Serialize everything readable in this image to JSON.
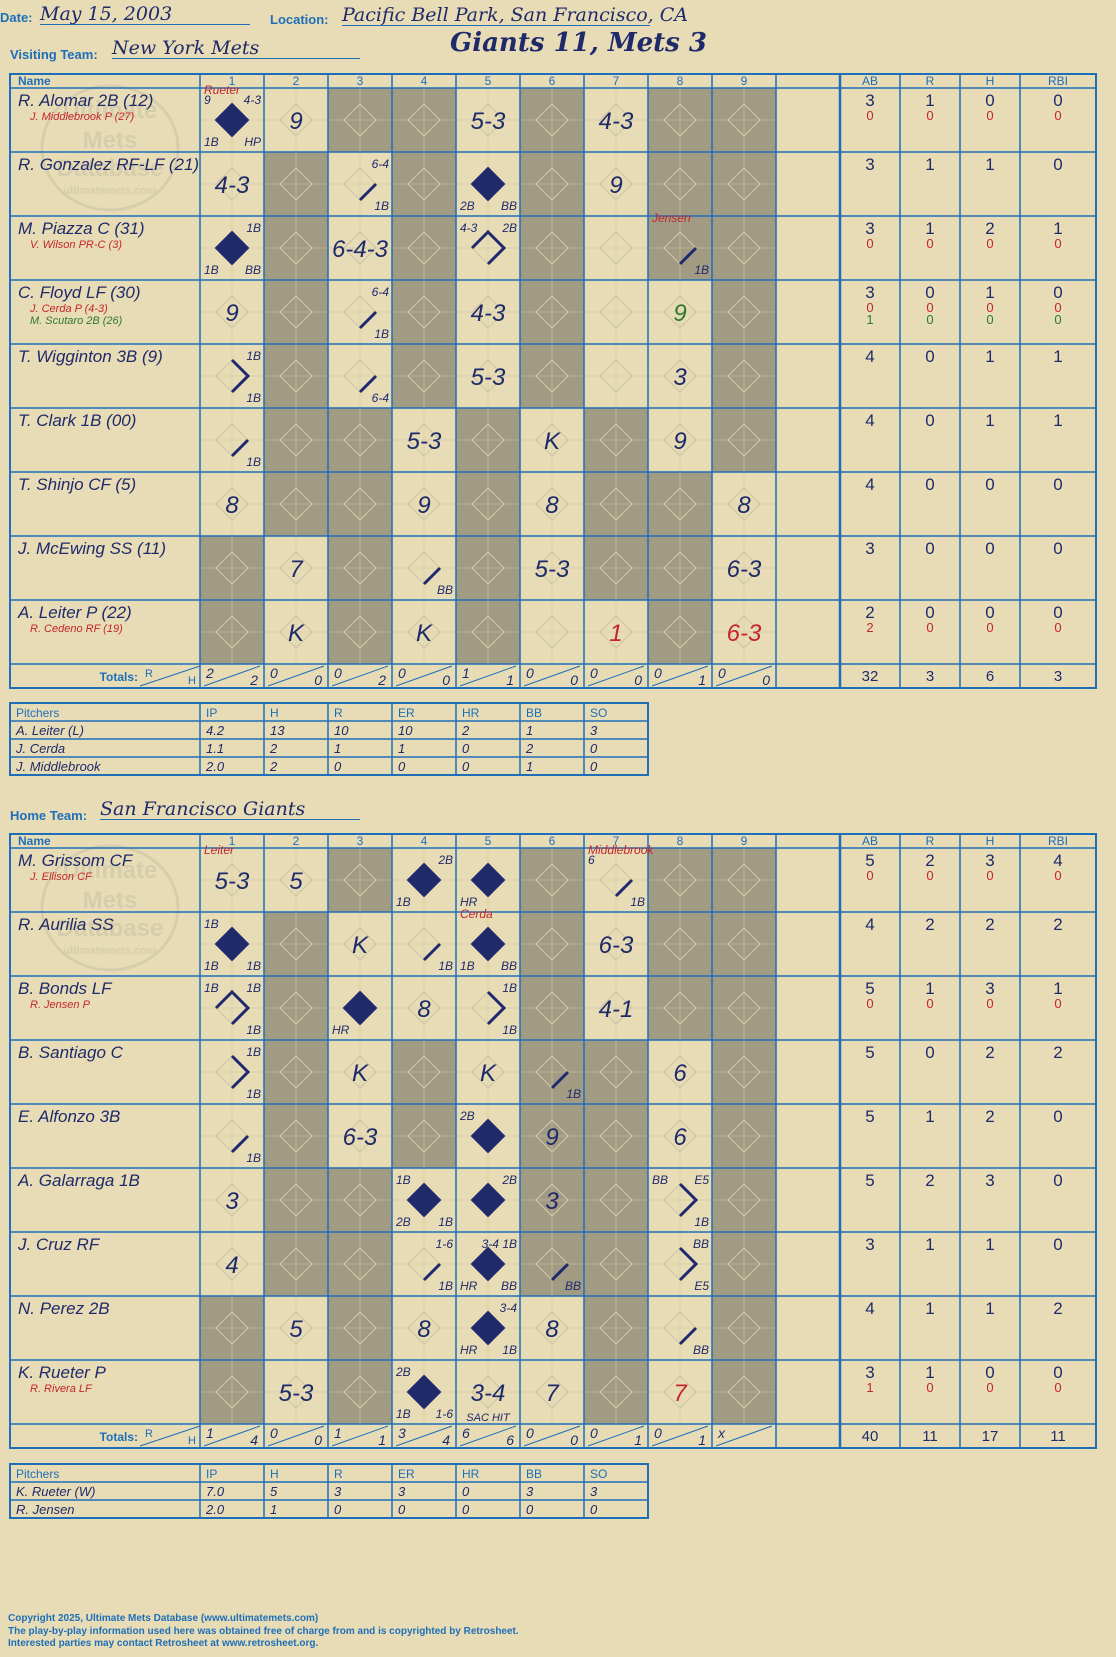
{
  "game": {
    "date_label": "Date:",
    "date": "May 15, 2003",
    "location_label": "Location:",
    "location": "Pacific Bell Park, San Francisco, CA",
    "visiting_label": "Visiting Team:",
    "visiting_team": "New York Mets",
    "home_label": "Home Team:",
    "home_team": "San Francisco Giants",
    "result": "Giants 11, Mets 3"
  },
  "headers": {
    "name": "Name",
    "innings": [
      "1",
      "2",
      "3",
      "4",
      "5",
      "6",
      "7",
      "8",
      "9"
    ],
    "stats": [
      "AB",
      "R",
      "H",
      "RBI"
    ],
    "totals": "Totals:",
    "r": "R",
    "h": "H"
  },
  "watermark": {
    "line1": "Ultimate",
    "line2": "Mets",
    "line3": "Database",
    "line4": "ultimatemets.com"
  },
  "colors": {
    "blue": "#1e6fb8",
    "ink": "#1f2a6b",
    "red": "#c4262b",
    "green": "#2f7a2b",
    "paper": "#e7dcb6",
    "shade": "#a29b83"
  },
  "visitors": {
    "shade_by_inning": [
      [
        0,
        0,
        1,
        1,
        0,
        1,
        0,
        1,
        1
      ],
      [
        0,
        1,
        0,
        1,
        0,
        1,
        0,
        1,
        1
      ],
      [
        0,
        1,
        0,
        1,
        0,
        1,
        0,
        1,
        1
      ],
      [
        0,
        1,
        0,
        1,
        0,
        1,
        0,
        0,
        1
      ],
      [
        0,
        1,
        0,
        1,
        0,
        1,
        0,
        0,
        1
      ],
      [
        0,
        1,
        1,
        0,
        1,
        0,
        1,
        0,
        1
      ],
      [
        0,
        1,
        1,
        0,
        1,
        0,
        1,
        1,
        0
      ],
      [
        1,
        0,
        1,
        0,
        1,
        0,
        1,
        1,
        0
      ],
      [
        1,
        0,
        1,
        0,
        1,
        0,
        0,
        1,
        0
      ]
    ],
    "batters": [
      {
        "name": "R. Alomar 2B (12)",
        "sub": "J. Middlebrook P (27)",
        "sub_color": "red",
        "sub2": "",
        "ab": "3",
        "r": "1",
        "h": "0",
        "rbi": "0",
        "ab2": "0",
        "r2": "0",
        "h2": "0",
        "rbi2": "0",
        "plays": [
          {
            "i": 1,
            "scored": true,
            "l": "",
            "tl": "9",
            "tr": "4-3",
            "bl": "1B",
            "br": "HP",
            "note": "Rueter"
          },
          {
            "i": 2,
            "l": "9"
          },
          {
            "i": 5,
            "l": "5-3"
          },
          {
            "i": 7,
            "l": "4-3"
          }
        ]
      },
      {
        "name": "R. Gonzalez RF-LF (21)",
        "sub": "",
        "sub2": "",
        "ab": "3",
        "r": "1",
        "h": "1",
        "rbi": "0",
        "plays": [
          {
            "i": 1,
            "l": "4-3"
          },
          {
            "i": 3,
            "tr": "6-4",
            "br": "1B",
            "path": 1
          },
          {
            "i": 5,
            "scored": true,
            "bl": "2B",
            "br": "BB"
          },
          {
            "i": 7,
            "l": "9"
          }
        ]
      },
      {
        "name": "M. Piazza C (31)",
        "sub": "V. Wilson PR-C (3)",
        "sub_color": "red",
        "sub2": "",
        "ab": "3",
        "r": "1",
        "h": "2",
        "rbi": "1",
        "ab2": "0",
        "r2": "0",
        "h2": "0",
        "rbi2": "0",
        "plays": [
          {
            "i": 1,
            "scored": true,
            "tr": "1B",
            "bl": "1B",
            "br": "BB"
          },
          {
            "i": 3,
            "l": "6-4-3"
          },
          {
            "i": 5,
            "tl": "4-3",
            "tr": "2B",
            "path": 3
          },
          {
            "i": 8,
            "br": "1B",
            "path": 1,
            "note": "Jensen"
          }
        ]
      },
      {
        "name": "C. Floyd LF (30)",
        "sub": "J. Cerda P (4-3)",
        "sub_color": "red",
        "sub2": "M. Scutaro 2B (26)",
        "ab": "3",
        "r": "0",
        "h": "1",
        "rbi": "0",
        "ab2": "0",
        "r2": "0",
        "h2": "0",
        "rbi2": "0",
        "ab3": "1",
        "r3": "0",
        "h3": "0",
        "rbi3": "0",
        "plays": [
          {
            "i": 1,
            "l": "9"
          },
          {
            "i": 3,
            "tr": "6-4",
            "br": "1B",
            "path": 1
          },
          {
            "i": 5,
            "l": "4-3"
          },
          {
            "i": 8,
            "l": "9",
            "green": true
          }
        ]
      },
      {
        "name": "T. Wigginton 3B (9)",
        "sub": "",
        "sub2": "",
        "ab": "4",
        "r": "0",
        "h": "1",
        "rbi": "1",
        "plays": [
          {
            "i": 1,
            "tr": "1B",
            "br": "1B",
            "path": 2
          },
          {
            "i": 3,
            "br": "6-4",
            "path": 1
          },
          {
            "i": 5,
            "l": "5-3"
          },
          {
            "i": 8,
            "l": "3"
          }
        ]
      },
      {
        "name": "T. Clark 1B (00)",
        "sub": "",
        "sub2": "",
        "ab": "4",
        "r": "0",
        "h": "1",
        "rbi": "1",
        "plays": [
          {
            "i": 1,
            "br": "1B",
            "path": 1
          },
          {
            "i": 4,
            "l": "5-3"
          },
          {
            "i": 6,
            "l": "K"
          },
          {
            "i": 8,
            "l": "9"
          }
        ]
      },
      {
        "name": "T. Shinjo CF (5)",
        "sub": "",
        "sub2": "",
        "ab": "4",
        "r": "0",
        "h": "0",
        "rbi": "0",
        "plays": [
          {
            "i": 1,
            "l": "8"
          },
          {
            "i": 4,
            "l": "9"
          },
          {
            "i": 6,
            "l": "8"
          },
          {
            "i": 9,
            "l": "8"
          }
        ]
      },
      {
        "name": "J. McEwing SS (11)",
        "sub": "",
        "sub2": "",
        "ab": "3",
        "r": "0",
        "h": "0",
        "rbi": "0",
        "plays": [
          {
            "i": 2,
            "l": "7"
          },
          {
            "i": 4,
            "br": "BB",
            "path": 1
          },
          {
            "i": 6,
            "l": "5-3"
          },
          {
            "i": 9,
            "l": "6-3"
          }
        ]
      },
      {
        "name": "A. Leiter P (22)",
        "sub": "R. Cedeno RF (19)",
        "sub_color": "red",
        "sub2": "",
        "ab": "2",
        "r": "0",
        "h": "0",
        "rbi": "0",
        "ab2": "2",
        "r2": "0",
        "h2": "0",
        "rbi2": "0",
        "plays": [
          {
            "i": 2,
            "l": "K"
          },
          {
            "i": 4,
            "l": "K"
          },
          {
            "i": 7,
            "l": "1",
            "red": true
          },
          {
            "i": 9,
            "l": "6-3",
            "red": true
          }
        ]
      }
    ],
    "totals": {
      "inn": [
        [
          "2",
          "2"
        ],
        [
          "0",
          "0"
        ],
        [
          "0",
          "2"
        ],
        [
          "0",
          "0"
        ],
        [
          "1",
          "1"
        ],
        [
          "0",
          "0"
        ],
        [
          "0",
          "0"
        ],
        [
          "0",
          "1"
        ],
        [
          "0",
          "0"
        ]
      ],
      "ab": "32",
      "r": "3",
      "h": "6",
      "rbi": "3"
    },
    "pitching_headers": [
      "Pitchers",
      "IP",
      "H",
      "R",
      "ER",
      "HR",
      "BB",
      "SO"
    ],
    "pitchers": [
      [
        "A. Leiter (L)",
        "4.2",
        "13",
        "10",
        "10",
        "2",
        "1",
        "3"
      ],
      [
        "J. Cerda",
        "1.1",
        "2",
        "1",
        "1",
        "0",
        "2",
        "0"
      ],
      [
        "J. Middlebrook",
        "2.0",
        "2",
        "0",
        "0",
        "0",
        "1",
        "0"
      ]
    ]
  },
  "home": {
    "shade_by_inning": [
      [
        0,
        0,
        1,
        0,
        0,
        1,
        0,
        1,
        1
      ],
      [
        0,
        1,
        0,
        0,
        0,
        1,
        0,
        1,
        1
      ],
      [
        0,
        1,
        0,
        0,
        0,
        1,
        0,
        1,
        1
      ],
      [
        0,
        1,
        0,
        1,
        0,
        1,
        1,
        0,
        1
      ],
      [
        0,
        1,
        0,
        1,
        0,
        1,
        1,
        0,
        1
      ],
      [
        0,
        1,
        1,
        0,
        0,
        1,
        1,
        0,
        1
      ],
      [
        0,
        1,
        1,
        0,
        0,
        1,
        1,
        0,
        1
      ],
      [
        1,
        0,
        1,
        0,
        0,
        0,
        1,
        0,
        1
      ],
      [
        1,
        0,
        1,
        0,
        0,
        0,
        1,
        0,
        1
      ]
    ],
    "batters": [
      {
        "name": "M. Grissom CF",
        "sub": "J. Ellison CF",
        "sub_color": "red",
        "sub2": "",
        "ab": "5",
        "r": "2",
        "h": "3",
        "rbi": "4",
        "ab2": "0",
        "r2": "0",
        "h2": "0",
        "rbi2": "0",
        "plays": [
          {
            "i": 1,
            "l": "5-3",
            "note": "Leiter"
          },
          {
            "i": 2,
            "l": "5"
          },
          {
            "i": 4,
            "scored": true,
            "tr": "2B",
            "bl": "1B"
          },
          {
            "i": 5,
            "scored": true,
            "bl": "HR"
          },
          {
            "i": 7,
            "tl": "6",
            "br": "1B",
            "path": 1,
            "note": "Middlebrook"
          }
        ]
      },
      {
        "name": "R. Aurilia SS",
        "sub": "",
        "sub2": "",
        "ab": "4",
        "r": "2",
        "h": "2",
        "rbi": "2",
        "plays": [
          {
            "i": 1,
            "scored": true,
            "tl": "1B",
            "bl": "1B",
            "br": "1B"
          },
          {
            "i": 3,
            "l": "K"
          },
          {
            "i": 4,
            "br": "1B",
            "path": 1
          },
          {
            "i": 5,
            "scored": true,
            "bl": "1B",
            "br": "BB",
            "note": "Cerda"
          },
          {
            "i": 7,
            "l": "6-3"
          }
        ]
      },
      {
        "name": "B. Bonds LF",
        "sub": "R. Jensen P",
        "sub_color": "red",
        "sub2": "",
        "ab": "5",
        "r": "1",
        "h": "3",
        "rbi": "1",
        "ab2": "0",
        "r2": "0",
        "h2": "0",
        "rbi2": "0",
        "plays": [
          {
            "i": 1,
            "tl": "1B",
            "tr": "1B",
            "br": "1B",
            "path": 3
          },
          {
            "i": 3,
            "scored": true,
            "bl": "HR"
          },
          {
            "i": 4,
            "l": "8"
          },
          {
            "i": 5,
            "tr": "1B",
            "br": "1B",
            "path": 2
          },
          {
            "i": 7,
            "l": "4-1"
          }
        ]
      },
      {
        "name": "B. Santiago C",
        "sub": "",
        "sub2": "",
        "ab": "5",
        "r": "0",
        "h": "2",
        "rbi": "2",
        "plays": [
          {
            "i": 1,
            "tr": "1B",
            "br": "1B",
            "path": 2
          },
          {
            "i": 3,
            "l": "K"
          },
          {
            "i": 5,
            "l": "K"
          },
          {
            "i": 6,
            "br": "1B",
            "path": 1
          },
          {
            "i": 8,
            "l": "6"
          }
        ]
      },
      {
        "name": "E. Alfonzo 3B",
        "sub": "",
        "sub2": "",
        "ab": "5",
        "r": "1",
        "h": "2",
        "rbi": "0",
        "plays": [
          {
            "i": 1,
            "br": "1B",
            "path": 1
          },
          {
            "i": 3,
            "l": "6-3"
          },
          {
            "i": 5,
            "scored": true,
            "tl": "2B"
          },
          {
            "i": 6,
            "l": "9"
          },
          {
            "i": 8,
            "l": "6"
          }
        ]
      },
      {
        "name": "A. Galarraga 1B",
        "sub": "",
        "sub2": "",
        "ab": "5",
        "r": "2",
        "h": "3",
        "rbi": "0",
        "plays": [
          {
            "i": 1,
            "l": "3"
          },
          {
            "i": 4,
            "scored": true,
            "tl": "1B",
            "bl": "2B",
            "br": "1B"
          },
          {
            "i": 5,
            "scored": true,
            "tr": "2B"
          },
          {
            "i": 6,
            "l": "3"
          },
          {
            "i": 8,
            "tl": "BB",
            "tr": "E5",
            "br": "1B",
            "path": 2
          }
        ]
      },
      {
        "name": "J. Cruz RF",
        "sub": "",
        "sub2": "",
        "ab": "3",
        "r": "1",
        "h": "1",
        "rbi": "0",
        "plays": [
          {
            "i": 1,
            "l": "4"
          },
          {
            "i": 4,
            "tr": "1-6",
            "br": "1B",
            "path": 1
          },
          {
            "i": 5,
            "scored": true,
            "tr": "3-4 1B",
            "bl": "HR",
            "br": "BB"
          },
          {
            "i": 6,
            "br": "BB",
            "path": 1
          },
          {
            "i": 8,
            "tr": "BB",
            "br": "E5",
            "path": 2
          }
        ]
      },
      {
        "name": "N. Perez 2B",
        "sub": "",
        "sub2": "",
        "ab": "4",
        "r": "1",
        "h": "1",
        "rbi": "2",
        "plays": [
          {
            "i": 2,
            "l": "5"
          },
          {
            "i": 4,
            "l": "8"
          },
          {
            "i": 5,
            "scored": true,
            "tr": "3-4",
            "bl": "HR",
            "br": "1B"
          },
          {
            "i": 6,
            "l": "8"
          },
          {
            "i": 8,
            "br": "BB",
            "path": 1
          }
        ]
      },
      {
        "name": "K. Rueter P",
        "sub": "R. Rivera LF",
        "sub_color": "red",
        "sub2": "",
        "ab": "3",
        "r": "1",
        "h": "0",
        "rbi": "0",
        "ab2": "1",
        "r2": "0",
        "h2": "0",
        "rbi2": "0",
        "plays": [
          {
            "i": 2,
            "l": "5-3"
          },
          {
            "i": 4,
            "scored": true,
            "tl": "2B",
            "bl": "1B",
            "br": "1-6"
          },
          {
            "i": 5,
            "l": "3-4",
            "bottom": "SAC HIT"
          },
          {
            "i": 6,
            "l": "7"
          },
          {
            "i": 8,
            "l": "7",
            "red": true
          }
        ]
      }
    ],
    "totals": {
      "inn": [
        [
          "1",
          "4"
        ],
        [
          "0",
          "0"
        ],
        [
          "1",
          "1"
        ],
        [
          "3",
          "4"
        ],
        [
          "6",
          "6"
        ],
        [
          "0",
          "0"
        ],
        [
          "0",
          "1"
        ],
        [
          "0",
          "1"
        ],
        [
          "x",
          ""
        ]
      ],
      "ab": "40",
      "r": "11",
      "h": "17",
      "rbi": "11"
    },
    "pitching_headers": [
      "Pitchers",
      "IP",
      "H",
      "R",
      "ER",
      "HR",
      "BB",
      "SO"
    ],
    "pitchers": [
      [
        "K. Rueter (W)",
        "7.0",
        "5",
        "3",
        "3",
        "0",
        "3",
        "3"
      ],
      [
        "R. Jensen",
        "2.0",
        "1",
        "0",
        "0",
        "0",
        "0",
        "0"
      ]
    ]
  },
  "footer": {
    "line1": "Copyright 2025, Ultimate Mets Database (www.ultimatemets.com)",
    "line2": "The play-by-play information used here was obtained free of charge from and is copyrighted by Retrosheet.",
    "line3": "Interested parties may contact Retrosheet at www.retrosheet.org."
  }
}
